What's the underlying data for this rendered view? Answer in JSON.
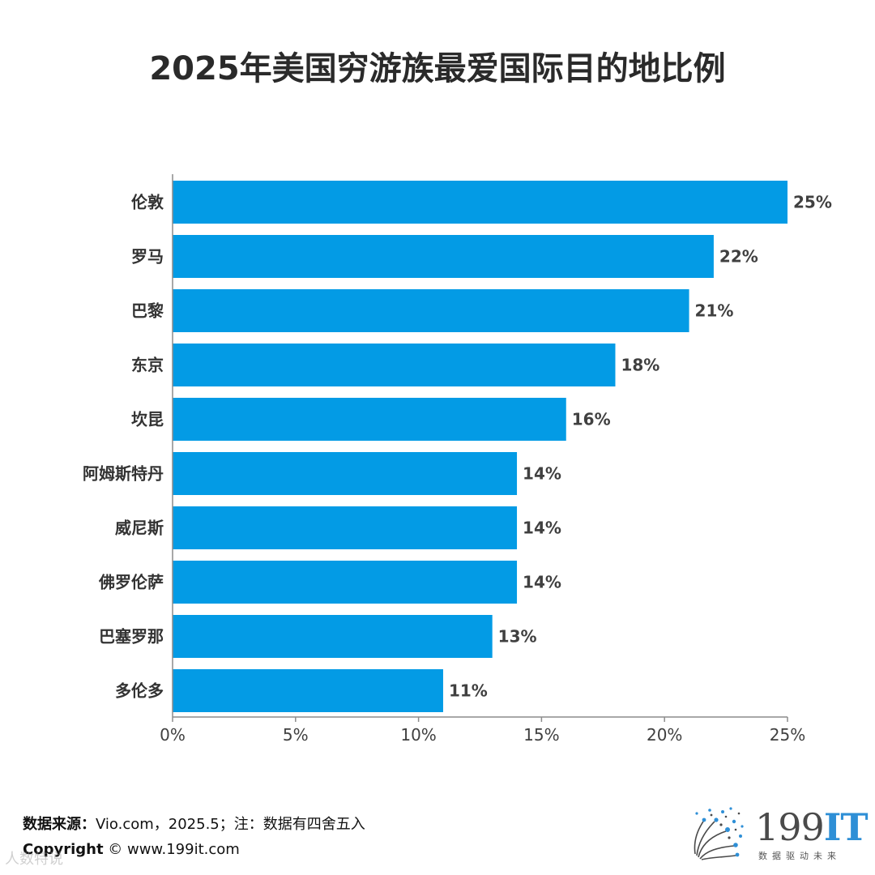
{
  "chart_data": {
    "type": "bar",
    "orientation": "horizontal",
    "title": "2025年美国穷游族最爱国际目的地比例",
    "categories": [
      "伦敦",
      "罗马",
      "巴黎",
      "东京",
      "坎昆",
      "阿姆斯特丹",
      "威尼斯",
      "佛罗伦萨",
      "巴塞罗那",
      "多伦多"
    ],
    "values": [
      25,
      22,
      21,
      18,
      16,
      14,
      14,
      14,
      13,
      11
    ],
    "data_labels": [
      "25%",
      "22%",
      "21%",
      "18%",
      "16%",
      "14%",
      "14%",
      "14%",
      "13%",
      "11%"
    ],
    "xlim": [
      0,
      25
    ],
    "x_ticks": [
      0,
      5,
      10,
      15,
      20,
      25
    ],
    "x_tick_labels": [
      "0%",
      "5%",
      "10%",
      "15%",
      "20%",
      "25%"
    ],
    "xlabel": "",
    "ylabel": "",
    "grid": false,
    "legend": "none",
    "bar_color": "#039be5"
  },
  "footer": {
    "source_label": "数据来源：",
    "source_text": "Vio.com，2025.5；注：数据有四舍五入",
    "copyright_label": "Copyright",
    "copyright_text": " ©  www.199it.com"
  },
  "watermark": "人数特说",
  "logo": {
    "icon": "dandelion-dots-icon",
    "number": "199",
    "suffix": "IT",
    "tagline": "数据驱动未来"
  }
}
